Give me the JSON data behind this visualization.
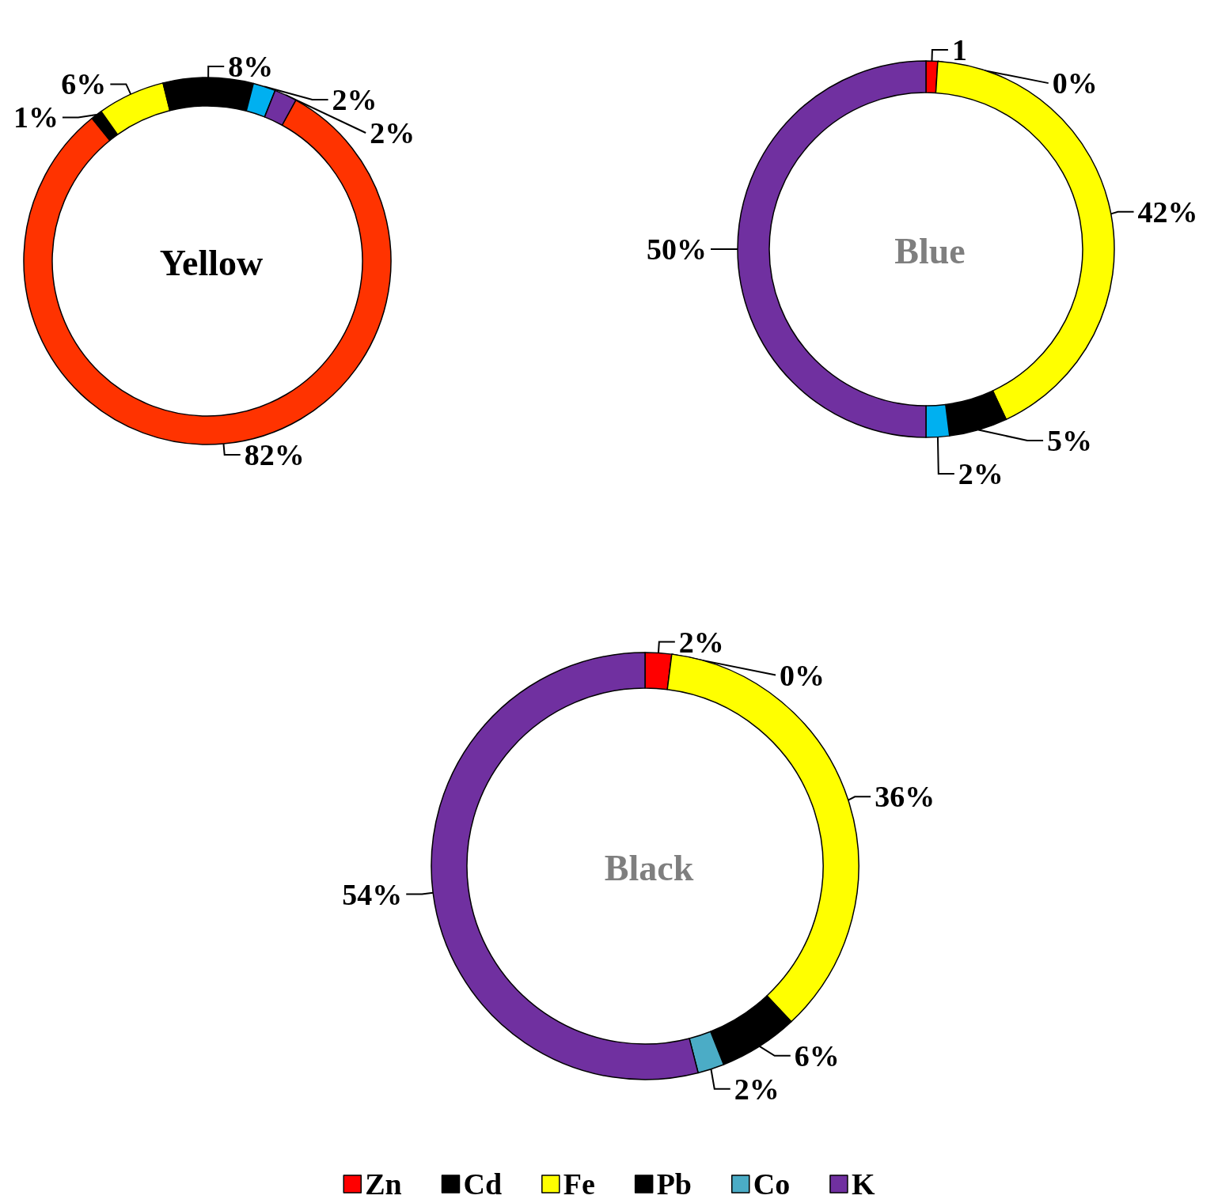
{
  "chart_data": [
    {
      "type": "donut",
      "title": "Yellow",
      "categories": [
        null,
        null,
        null,
        null,
        null,
        null
      ],
      "values": [
        82,
        1,
        6,
        8,
        2,
        2
      ],
      "colors": [
        "#ff3300",
        "#000000",
        "#ffff00",
        "#000000",
        "#00b0f0",
        "#7030a0"
      ],
      "value_labels": [
        "82%",
        "1%",
        "6%",
        "8%",
        "2%",
        "2%"
      ],
      "legend": false
    },
    {
      "type": "donut",
      "title": "Blue",
      "categories": [
        null,
        null,
        null,
        null,
        null,
        null
      ],
      "values": [
        1,
        0,
        42,
        5,
        2,
        50
      ],
      "colors": [
        "#ff0000",
        "#000000",
        "#ffff00",
        "#000000",
        "#00b0f0",
        "#7030a0"
      ],
      "value_labels": [
        "1",
        "0%",
        "42%",
        "5%",
        "2%",
        "50%"
      ],
      "legend": false
    },
    {
      "type": "donut",
      "title": "Black",
      "categories": [
        "Zn",
        "Cd",
        "Fe",
        "Pb",
        "Co",
        "K"
      ],
      "values": [
        2,
        0,
        36,
        6,
        2,
        54
      ],
      "colors": [
        "#ff0000",
        "#000000",
        "#ffff00",
        "#000000",
        "#4bacc6",
        "#7030a0"
      ],
      "value_labels": [
        "2%",
        "0%",
        "36%",
        "6%",
        "2%",
        "54%"
      ],
      "legend": "bottom"
    }
  ]
}
